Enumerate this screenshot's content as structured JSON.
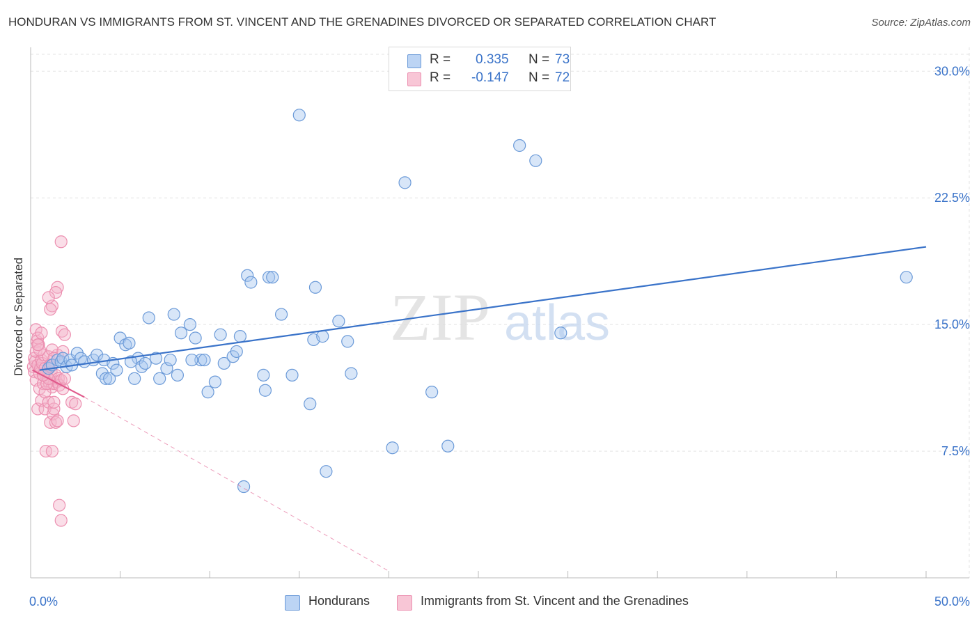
{
  "title": "HONDURAN VS IMMIGRANTS FROM ST. VINCENT AND THE GRENADINES DIVORCED OR SEPARATED CORRELATION CHART",
  "source": "Source: ZipAtlas.com",
  "watermark": {
    "zip": "ZIP",
    "atlas": "atlas"
  },
  "colors": {
    "blue": "#3a73c9",
    "blue_fill": "#a9c8f0",
    "blue_stroke": "#6b9ad8",
    "pink": "#e05a8c",
    "pink_fill": "#f5b6cb",
    "pink_stroke": "#ec8fb0",
    "grid": "#e3e3e3",
    "axis_label": "#3a73c9"
  },
  "legend": {
    "rows": [
      {
        "r_label": "R =",
        "r_value": "0.335",
        "n_label": "N =",
        "n_value": "73"
      },
      {
        "r_label": "R =",
        "r_value": "-0.147",
        "n_label": "N =",
        "n_value": "72"
      }
    ]
  },
  "bottom_legend": [
    "Hondurans",
    "Immigrants from St. Vincent and the Grenadines"
  ],
  "chart_data": {
    "type": "scatter",
    "title": "HONDURAN VS IMMIGRANTS FROM ST. VINCENT AND THE GRENADINES DIVORCED OR SEPARATED CORRELATION CHART",
    "xlabel": "",
    "ylabel": "Divorced or Separated",
    "xlim": [
      0,
      50
    ],
    "ylim": [
      0,
      31
    ],
    "x_tick_labels": [
      "0.0%",
      "50.0%"
    ],
    "y_ticks": [
      7.5,
      15.0,
      22.5,
      30.0
    ],
    "y_tick_labels": [
      "7.5%",
      "15.0%",
      "22.5%",
      "30.0%"
    ],
    "series": [
      {
        "name": "Hondurans",
        "R": 0.335,
        "N": 73,
        "trend": {
          "x": [
            0.5,
            50
          ],
          "y": [
            12.3,
            19.6
          ],
          "style": "solid"
        },
        "points": [
          [
            1.0,
            12.4
          ],
          [
            1.2,
            12.6
          ],
          [
            1.5,
            12.9
          ],
          [
            1.7,
            12.8
          ],
          [
            1.8,
            13.0
          ],
          [
            2.0,
            12.5
          ],
          [
            2.2,
            12.9
          ],
          [
            2.6,
            13.3
          ],
          [
            2.8,
            13.0
          ],
          [
            3.0,
            12.8
          ],
          [
            3.5,
            12.9
          ],
          [
            3.7,
            13.2
          ],
          [
            4.0,
            12.1
          ],
          [
            4.1,
            12.9
          ],
          [
            4.2,
            11.8
          ],
          [
            4.4,
            11.8
          ],
          [
            4.6,
            12.7
          ],
          [
            4.8,
            12.3
          ],
          [
            5.0,
            14.2
          ],
          [
            5.3,
            13.8
          ],
          [
            5.5,
            13.9
          ],
          [
            5.8,
            11.8
          ],
          [
            6.0,
            13.0
          ],
          [
            6.2,
            12.5
          ],
          [
            6.4,
            12.7
          ],
          [
            6.6,
            15.4
          ],
          [
            7.0,
            13.0
          ],
          [
            7.2,
            11.8
          ],
          [
            7.6,
            12.4
          ],
          [
            7.8,
            12.9
          ],
          [
            8.0,
            15.6
          ],
          [
            8.2,
            12.0
          ],
          [
            8.4,
            14.5
          ],
          [
            8.9,
            15.0
          ],
          [
            9.2,
            14.2
          ],
          [
            9.5,
            12.9
          ],
          [
            9.7,
            12.9
          ],
          [
            9.9,
            11.0
          ],
          [
            10.3,
            11.6
          ],
          [
            10.6,
            14.4
          ],
          [
            10.8,
            12.7
          ],
          [
            11.3,
            13.1
          ],
          [
            11.5,
            13.4
          ],
          [
            11.7,
            14.3
          ],
          [
            12.1,
            17.9
          ],
          [
            12.3,
            17.5
          ],
          [
            13.0,
            12.0
          ],
          [
            13.1,
            11.1
          ],
          [
            13.3,
            17.8
          ],
          [
            13.5,
            17.8
          ],
          [
            14.0,
            15.6
          ],
          [
            14.6,
            12.0
          ],
          [
            15.0,
            27.4
          ],
          [
            15.6,
            10.3
          ],
          [
            15.8,
            14.1
          ],
          [
            15.9,
            17.2
          ],
          [
            16.3,
            14.3
          ],
          [
            16.5,
            6.3
          ],
          [
            17.2,
            15.2
          ],
          [
            17.7,
            14.0
          ],
          [
            17.9,
            12.1
          ],
          [
            20.2,
            7.7
          ],
          [
            20.9,
            23.4
          ],
          [
            22.4,
            11.0
          ],
          [
            23.3,
            7.8
          ],
          [
            27.3,
            25.6
          ],
          [
            28.2,
            24.7
          ],
          [
            29.6,
            14.5
          ],
          [
            48.9,
            17.8
          ],
          [
            11.9,
            5.4
          ],
          [
            2.3,
            12.6
          ],
          [
            9.0,
            12.9
          ],
          [
            5.6,
            12.8
          ]
        ]
      },
      {
        "name": "Immigrants from St. Vincent and the Grenadines",
        "R": -0.147,
        "N": 72,
        "trend": {
          "x": [
            0.1,
            3.0
          ],
          "y": [
            12.3,
            10.7
          ],
          "style": "solid",
          "extended_x": [
            3.0,
            20.0
          ],
          "extended_y": [
            10.7,
            0.4
          ],
          "extended_style": "dashed"
        },
        "points": [
          [
            0.15,
            12.5
          ],
          [
            0.2,
            13.0
          ],
          [
            0.25,
            12.8
          ],
          [
            0.2,
            12.2
          ],
          [
            0.3,
            13.4
          ],
          [
            0.3,
            11.7
          ],
          [
            0.35,
            14.0
          ],
          [
            0.4,
            12.6
          ],
          [
            0.4,
            10.0
          ],
          [
            0.45,
            13.8
          ],
          [
            0.5,
            12.1
          ],
          [
            0.5,
            11.2
          ],
          [
            0.55,
            12.4
          ],
          [
            0.6,
            12.9
          ],
          [
            0.6,
            10.5
          ],
          [
            0.65,
            12.7
          ],
          [
            0.7,
            11.5
          ],
          [
            0.75,
            13.2
          ],
          [
            0.8,
            12.4
          ],
          [
            0.8,
            10.0
          ],
          [
            0.85,
            7.5
          ],
          [
            0.9,
            11.9
          ],
          [
            0.95,
            12.3
          ],
          [
            1.0,
            13.1
          ],
          [
            1.0,
            10.4
          ],
          [
            1.05,
            11.5
          ],
          [
            1.1,
            12.6
          ],
          [
            1.1,
            9.2
          ],
          [
            1.15,
            12.2
          ],
          [
            1.2,
            11.3
          ],
          [
            1.25,
            9.7
          ],
          [
            1.3,
            11.5
          ],
          [
            1.3,
            10.0
          ],
          [
            1.4,
            12.0
          ],
          [
            1.45,
            11.6
          ],
          [
            1.5,
            13.2
          ],
          [
            1.55,
            11.8
          ],
          [
            1.6,
            11.4
          ],
          [
            1.7,
            11.7
          ],
          [
            1.75,
            14.6
          ],
          [
            1.8,
            11.2
          ],
          [
            1.9,
            11.8
          ],
          [
            1.5,
            17.2
          ],
          [
            1.4,
            16.9
          ],
          [
            1.2,
            16.1
          ],
          [
            1.1,
            15.9
          ],
          [
            1.0,
            16.6
          ],
          [
            1.7,
            19.9
          ],
          [
            0.3,
            14.7
          ],
          [
            0.4,
            14.2
          ],
          [
            0.5,
            13.5
          ],
          [
            0.6,
            14.5
          ],
          [
            0.7,
            12.0
          ],
          [
            0.8,
            11.0
          ],
          [
            0.9,
            11.5
          ],
          [
            1.0,
            11.8
          ],
          [
            1.1,
            12.5
          ],
          [
            1.2,
            13.5
          ],
          [
            1.3,
            10.4
          ],
          [
            1.4,
            9.2
          ],
          [
            1.5,
            9.3
          ],
          [
            1.6,
            4.3
          ],
          [
            1.7,
            3.4
          ],
          [
            1.2,
            7.5
          ],
          [
            2.3,
            10.4
          ],
          [
            2.5,
            10.3
          ],
          [
            2.4,
            9.3
          ],
          [
            1.8,
            13.4
          ],
          [
            1.3,
            13.0
          ],
          [
            0.7,
            12.0
          ],
          [
            0.4,
            13.8
          ],
          [
            1.9,
            14.4
          ]
        ]
      }
    ],
    "grid": true,
    "legend_position": "top-center"
  }
}
